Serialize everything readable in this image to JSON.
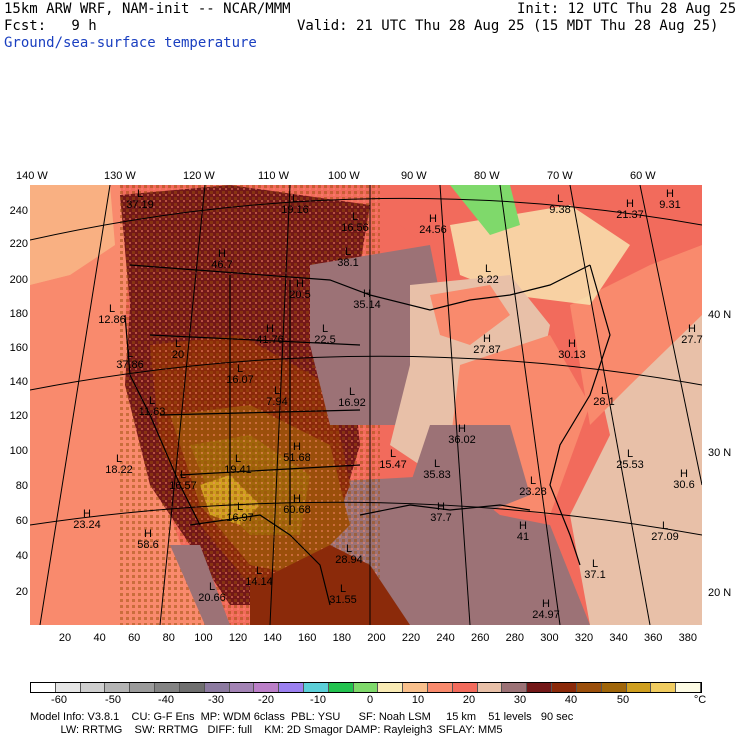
{
  "header": {
    "model": "15km ARW WRF, NAM-init -- NCAR/MMM",
    "fcst": "Fcst:   9 h",
    "init": "Init: 12 UTC Thu 28 Aug 25",
    "valid": "Valid: 21 UTC Thu 28 Aug 25 (15 MDT Thu 28 Aug 25)",
    "field": "Ground/sea-surface temperature"
  },
  "axes": {
    "lon_top": [
      "140 W",
      "130 W",
      "120 W",
      "110 W",
      "100 W",
      "90 W",
      "80 W",
      "70 W",
      "60 W"
    ],
    "lat_right": [
      "40 N",
      "30 N",
      "20 N"
    ],
    "y_grid": [
      "240",
      "220",
      "200",
      "180",
      "160",
      "140",
      "120",
      "100",
      "80",
      "60",
      "40",
      "20"
    ],
    "x_grid": [
      "20",
      "40",
      "60",
      "80",
      "100",
      "120",
      "140",
      "160",
      "180",
      "200",
      "220",
      "240",
      "260",
      "280",
      "300",
      "320",
      "340",
      "360",
      "380"
    ]
  },
  "annotations": [
    {
      "hl": "L",
      "val": "37.19"
    },
    {
      "hl": "L",
      "val": "19.16"
    },
    {
      "hl": "L",
      "val": "16.56"
    },
    {
      "hl": "H",
      "val": "24.56"
    },
    {
      "hl": "L",
      "val": "9.38"
    },
    {
      "hl": "H",
      "val": "21.37"
    },
    {
      "hl": "H",
      "val": "9.31"
    },
    {
      "hl": "H",
      "val": "46.7"
    },
    {
      "hl": "L",
      "val": "38.1"
    },
    {
      "hl": "L",
      "val": "8.22"
    },
    {
      "hl": "H",
      "val": "20.5"
    },
    {
      "hl": "H",
      "val": "35.14"
    },
    {
      "hl": "L",
      "val": "12.86"
    },
    {
      "hl": "H",
      "val": "41.76"
    },
    {
      "hl": "L",
      "val": "22.5"
    },
    {
      "hl": "H",
      "val": "27.87"
    },
    {
      "hl": "H",
      "val": "30.13"
    },
    {
      "hl": "H",
      "val": "27.7"
    },
    {
      "hl": "L",
      "val": "20"
    },
    {
      "hl": "L",
      "val": "37.86"
    },
    {
      "hl": "L",
      "val": "16.07"
    },
    {
      "hl": "L",
      "val": "7.94"
    },
    {
      "hl": "L",
      "val": "16.92"
    },
    {
      "hl": "L",
      "val": "28.1"
    },
    {
      "hl": "L",
      "val": "11.63"
    },
    {
      "hl": "H",
      "val": "36.02"
    },
    {
      "hl": "H",
      "val": "51.68"
    },
    {
      "hl": "L",
      "val": "15.47"
    },
    {
      "hl": "L",
      "val": "25.53"
    },
    {
      "hl": "L",
      "val": "18.22"
    },
    {
      "hl": "L",
      "val": "19.41"
    },
    {
      "hl": "L",
      "val": "35.83"
    },
    {
      "hl": "L",
      "val": "16.57"
    },
    {
      "hl": "L",
      "val": "23.28"
    },
    {
      "hl": "H",
      "val": "30.6"
    },
    {
      "hl": "H",
      "val": "23.24"
    },
    {
      "hl": "L",
      "val": "16.97"
    },
    {
      "hl": "H",
      "val": "60.68"
    },
    {
      "hl": "H",
      "val": "37.7"
    },
    {
      "hl": "H",
      "val": "41"
    },
    {
      "hl": "L",
      "val": "27.09"
    },
    {
      "hl": "H",
      "val": "58.6"
    },
    {
      "hl": "L",
      "val": "28.94"
    },
    {
      "hl": "L",
      "val": "37.1"
    },
    {
      "hl": "L",
      "val": "14.14"
    },
    {
      "hl": "L",
      "val": "20.66"
    },
    {
      "hl": "L",
      "val": "31.55"
    },
    {
      "hl": "H",
      "val": "24.97"
    }
  ],
  "colorbar": {
    "colors": [
      "#ffffff",
      "#e6e6e6",
      "#cfcfcf",
      "#b4b4b4",
      "#9b9b9b",
      "#838383",
      "#6f6f6f",
      "#8c7aa0",
      "#a383b5",
      "#bb7fc8",
      "#9b80f0",
      "#5ccfd8",
      "#23c24f",
      "#7fd96b",
      "#f9ebb5",
      "#f9c08c",
      "#f98a6d",
      "#f26b5c",
      "#e8c0a8",
      "#9c7276",
      "#731818",
      "#8b2a0a",
      "#9b4f0b",
      "#a0660a",
      "#cf9f1f",
      "#f0cc60",
      "#fdfbe4"
    ],
    "labels": [
      "-60",
      "-50",
      "-40",
      "-30",
      "-20",
      "-10",
      "0",
      "10",
      "20",
      "30",
      "40",
      "50"
    ],
    "unit": "°C"
  },
  "footer": {
    "line1": "Model Info: V3.8.1    CU: G-F Ens  MP: WDM 6class  PBL: YSU      SF: Noah LSM     15 km    51 levels   90 sec",
    "line2": "          LW: RRTMG    SW: RRTMG   DIFF: full    KM: 2D Smagor DAMP: Rayleigh3  SFLAY: MM5"
  }
}
